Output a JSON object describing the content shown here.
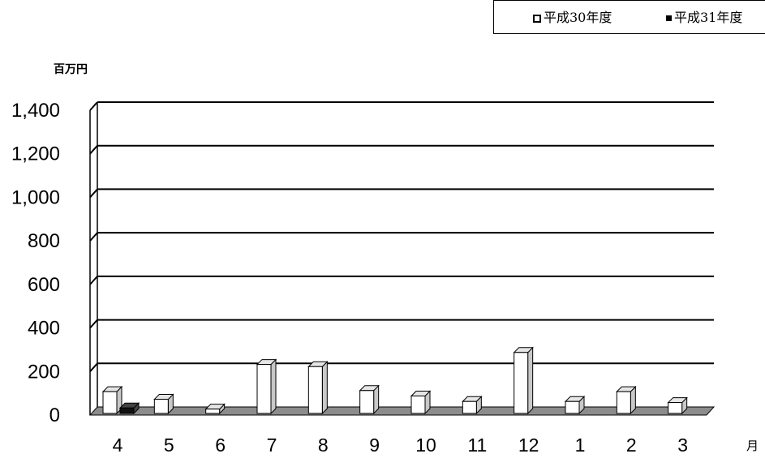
{
  "chart_data": {
    "type": "bar",
    "title": "",
    "ylabel": "百万円",
    "xlabel": "月",
    "categories": [
      "4",
      "5",
      "6",
      "7",
      "8",
      "9",
      "10",
      "11",
      "12",
      "1",
      "2",
      "3"
    ],
    "series": [
      {
        "name": "平成30年度",
        "style": "hollow",
        "values": [
          100,
          65,
          20,
          225,
          215,
          105,
          80,
          55,
          280,
          55,
          100,
          50
        ]
      },
      {
        "name": "平成31年度",
        "style": "filled",
        "values": [
          25,
          null,
          null,
          null,
          null,
          null,
          null,
          null,
          null,
          null,
          null,
          null
        ]
      }
    ],
    "ylim": [
      0,
      1400
    ],
    "yticks": [
      0,
      200,
      400,
      600,
      800,
      1000,
      1200,
      1400
    ],
    "ytick_labels": [
      "0",
      "200",
      "400",
      "600",
      "800",
      "1,000",
      "1,200",
      "1,400"
    ],
    "grid": true,
    "legend_position": "top-right",
    "colors": {
      "hollow_face": "#ffffff",
      "hollow_top": "#e6e6e6",
      "hollow_side": "#c8c8c8",
      "filled_face": "#111111",
      "filled_side": "#444444",
      "floor": "#8c8c8c",
      "gridline": "#000000"
    }
  }
}
